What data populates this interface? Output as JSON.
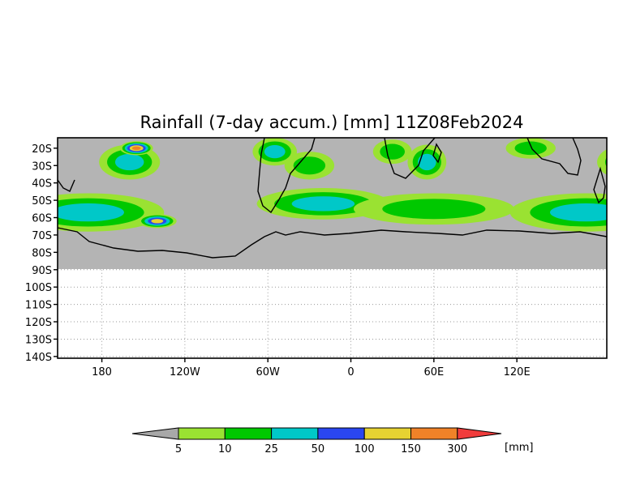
{
  "chart_data": {
    "type": "heatmap",
    "title": "Rainfall (7-day accum.) [mm] 11Z08Feb2024",
    "xlabel": "",
    "ylabel": "",
    "x_ticks": [
      "180",
      "120W",
      "60W",
      "0",
      "60E",
      "120E"
    ],
    "x_tick_values": [
      -180,
      -120,
      -60,
      0,
      60,
      120
    ],
    "xlim": [
      -212,
      185
    ],
    "y_ticks": [
      "20S",
      "30S",
      "40S",
      "50S",
      "60S",
      "70S",
      "80S",
      "90S",
      "100S",
      "110S",
      "120S",
      "130S",
      "140S"
    ],
    "y_tick_values": [
      -20,
      -30,
      -40,
      -50,
      -60,
      -70,
      -80,
      -90,
      -100,
      -110,
      -120,
      -130,
      -140
    ],
    "ylim": [
      -141,
      -14
    ],
    "grid": true,
    "colorbar": {
      "unit": "[mm]",
      "levels": [
        "5",
        "10",
        "25",
        "50",
        "100",
        "150",
        "300"
      ],
      "colors": [
        "#a8a8a8",
        "#9ae232",
        "#00c800",
        "#00c8c8",
        "#2a46f0",
        "#e6d232",
        "#f08228",
        "#f03c3c"
      ]
    },
    "background_color": "#b4b4b4",
    "rain_regions": [
      {
        "name": "sh-storm-track-pacific",
        "lon": -190,
        "lat": -57,
        "rlon": 55,
        "rlat": 11,
        "level": 3
      },
      {
        "name": "sh-storm-track-atlantic",
        "lon": -20,
        "lat": -52,
        "rlon": 48,
        "rlat": 9,
        "level": 3
      },
      {
        "name": "sh-storm-track-indian",
        "lon": 60,
        "lat": -55,
        "rlon": 58,
        "rlat": 9,
        "level": 2
      },
      {
        "name": "tropical-south-america",
        "lon": -55,
        "lat": -22,
        "rlon": 16,
        "rlat": 8,
        "level": 3
      },
      {
        "name": "south-atlantic-convergence",
        "lon": -30,
        "lat": -30,
        "rlon": 18,
        "rlat": 8,
        "level": 2
      },
      {
        "name": "southern-africa",
        "lon": 30,
        "lat": -22,
        "rlon": 14,
        "rlat": 7,
        "level": 2
      },
      {
        "name": "madagascar-indian-ocean",
        "lon": 55,
        "lat": -28,
        "rlon": 14,
        "rlat": 10,
        "level": 3
      },
      {
        "name": "australia-north",
        "lon": 130,
        "lat": -20,
        "rlon": 18,
        "rlat": 6,
        "level": 2
      },
      {
        "name": "south-pacific-convergence",
        "lon": -160,
        "lat": -28,
        "rlon": 22,
        "rlat": 10,
        "level": 3
      },
      {
        "name": "heavy-cell-southern-ocean",
        "lon": -140,
        "lat": -62,
        "rlon": 14,
        "rlat": 4,
        "level": 5
      },
      {
        "name": "heavy-cell-tropics",
        "lon": -155,
        "lat": -20,
        "rlon": 12,
        "rlat": 4,
        "level": 6
      }
    ]
  }
}
